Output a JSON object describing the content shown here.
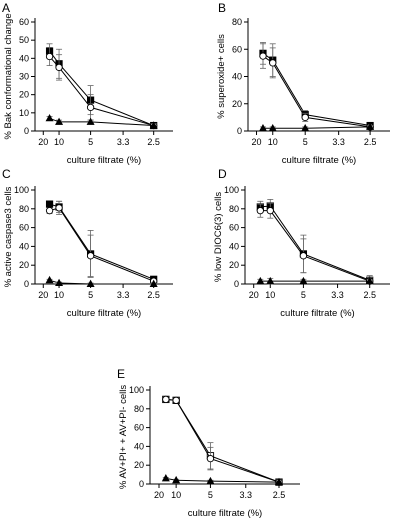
{
  "chart_data": [
    {
      "panel": "A",
      "type": "line",
      "ylabel": "% Bak conformational change",
      "xlabel": "culture filtrate (%)",
      "xticks": [
        "20",
        "10",
        "5",
        "3.3",
        "2.5"
      ],
      "xlim": [
        20,
        2.5
      ],
      "ylim": [
        0,
        60
      ],
      "yticks": [
        "0",
        "10",
        "20",
        "30",
        "40",
        "50",
        "60"
      ],
      "x": [
        14.3,
        10,
        5,
        2.5
      ],
      "series": [
        {
          "marker": "square-filled",
          "values": [
            44,
            37,
            17,
            3
          ],
          "errors": [
            4,
            8,
            8,
            1
          ]
        },
        {
          "marker": "circle-open",
          "values": [
            41,
            35,
            13,
            3
          ],
          "errors": [
            5,
            7,
            7,
            1
          ]
        },
        {
          "marker": "triangle-filled",
          "values": [
            7,
            5,
            5,
            3
          ],
          "errors": [
            1,
            1,
            1,
            1
          ]
        }
      ]
    },
    {
      "panel": "B",
      "type": "line",
      "ylabel": "% superoxide+ cells",
      "xlabel": "culture filtrate (%)",
      "xticks": [
        "20",
        "10",
        "5",
        "3.3",
        "2.5"
      ],
      "xlim": [
        20,
        2.5
      ],
      "ylim": [
        0,
        80
      ],
      "yticks": [
        "0",
        "20",
        "40",
        "60",
        "80"
      ],
      "x": [
        14.3,
        10,
        5,
        2.5
      ],
      "series": [
        {
          "marker": "square-filled",
          "values": [
            57,
            52,
            12,
            4
          ],
          "errors": [
            8,
            12,
            3,
            1
          ]
        },
        {
          "marker": "circle-open",
          "values": [
            55,
            50,
            10,
            3
          ],
          "errors": [
            9,
            11,
            3,
            1
          ]
        },
        {
          "marker": "triangle-filled",
          "values": [
            2,
            2,
            2,
            3
          ],
          "errors": [
            1,
            1,
            1,
            1
          ]
        }
      ]
    },
    {
      "panel": "C",
      "type": "line",
      "ylabel": "% active caspase3 cells",
      "xlabel": "culture filtrate (%)",
      "xticks": [
        "20",
        "10",
        "5",
        "3.3",
        "2.5"
      ],
      "xlim": [
        20,
        2.5
      ],
      "ylim": [
        0,
        100
      ],
      "yticks": [
        "0",
        "20",
        "40",
        "60",
        "80",
        "100"
      ],
      "x": [
        14.3,
        10,
        5,
        2.5
      ],
      "series": [
        {
          "marker": "square-filled",
          "values": [
            85,
            82,
            32,
            5
          ],
          "errors": [
            2,
            6,
            25,
            2
          ]
        },
        {
          "marker": "circle-open",
          "values": [
            78,
            81,
            30,
            3
          ],
          "errors": [
            3,
            7,
            22,
            2
          ]
        },
        {
          "marker": "triangle-filled",
          "values": [
            4,
            1,
            0,
            0
          ],
          "errors": [
            1,
            1,
            1,
            1
          ]
        }
      ]
    },
    {
      "panel": "D",
      "type": "line",
      "ylabel": "% low DIOC6(3) cells",
      "xlabel": "culture filtrate (%)",
      "xticks": [
        "20",
        "10",
        "5",
        "3.3",
        "2.5"
      ],
      "xlim": [
        20,
        2.5
      ],
      "ylim": [
        0,
        100
      ],
      "yticks": [
        "0",
        "20",
        "40",
        "60",
        "80",
        "100"
      ],
      "x": [
        14.3,
        10,
        5,
        2.5
      ],
      "series": [
        {
          "marker": "square-filled",
          "values": [
            82,
            83,
            32,
            4
          ],
          "errors": [
            6,
            7,
            20,
            5
          ]
        },
        {
          "marker": "circle-open",
          "values": [
            78,
            78,
            30,
            3
          ],
          "errors": [
            7,
            8,
            18,
            4
          ]
        },
        {
          "marker": "triangle-filled",
          "values": [
            3,
            3,
            3,
            3
          ],
          "errors": [
            2,
            3,
            2,
            2
          ]
        }
      ]
    },
    {
      "panel": "E",
      "type": "line",
      "ylabel": "% AV+PI+ + AV+PI- cells",
      "xlabel": "culture filtrate (%)",
      "xticks": [
        "20",
        "10",
        "5",
        "3.3",
        "2.5"
      ],
      "xlim": [
        20,
        2.5
      ],
      "ylim": [
        0,
        100
      ],
      "yticks": [
        "0",
        "20",
        "40",
        "60",
        "80",
        "100"
      ],
      "x": [
        14.3,
        10,
        5,
        2.5
      ],
      "series": [
        {
          "marker": "square-open",
          "values": [
            90,
            89,
            30,
            2
          ],
          "errors": [
            1,
            1,
            14,
            1
          ]
        },
        {
          "marker": "circle-open",
          "values": [
            90,
            89,
            27,
            2
          ],
          "errors": [
            1,
            1,
            12,
            1
          ]
        },
        {
          "marker": "triangle-filled",
          "values": [
            6,
            4,
            3,
            2
          ],
          "errors": [
            1,
            1,
            1,
            1
          ]
        }
      ]
    }
  ]
}
